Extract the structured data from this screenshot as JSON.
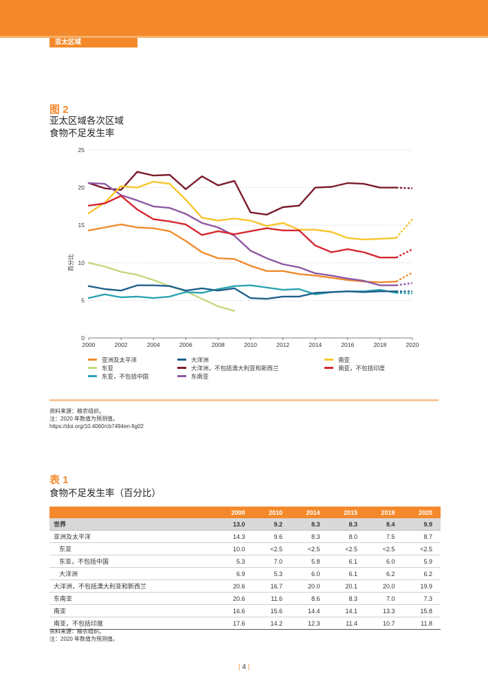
{
  "header": {
    "section": "亚太区域"
  },
  "figure": {
    "label": "图 2",
    "title_line1": "亚太区域各次区域",
    "title_line2": "食物不足发生率"
  },
  "chart_data": {
    "type": "line",
    "ylabel": "百分比",
    "xlim": [
      2000,
      2020
    ],
    "ylim": [
      0,
      25
    ],
    "xticks": [
      "2000",
      "2002",
      "2004",
      "2006",
      "2008",
      "2010",
      "2012",
      "2014",
      "2016",
      "2018",
      "2020"
    ],
    "yticks": [
      "0",
      "5",
      "10",
      "15",
      "20",
      "25"
    ],
    "grid": "horizontal dotted",
    "legend_position": "bottom",
    "projection_note": "2020 values dashed (projection)",
    "series": [
      {
        "name": "亚洲及太平洋",
        "color": "#f08a2c",
        "x": [
          2000,
          2001,
          2002,
          2003,
          2004,
          2005,
          2006,
          2007,
          2008,
          2009,
          2010,
          2011,
          2012,
          2013,
          2014,
          2015,
          2016,
          2017,
          2018,
          2019
        ],
        "y": [
          14.3,
          14.7,
          15.1,
          14.7,
          14.6,
          14.2,
          12.9,
          11.4,
          10.6,
          10.5,
          9.6,
          8.9,
          8.9,
          8.5,
          8.3,
          8.0,
          7.7,
          7.5,
          7.4,
          7.5
        ],
        "projection": [
          8.7
        ]
      },
      {
        "name": "东亚",
        "color": "#c5d87f",
        "x": [
          2000,
          2001,
          2002,
          2003,
          2004,
          2005,
          2006,
          2007,
          2008,
          2009
        ],
        "y": [
          10.0,
          9.5,
          8.8,
          8.4,
          7.7,
          6.9,
          6.2,
          5.2,
          4.2,
          3.6
        ]
      },
      {
        "name": "东亚，不包括中国",
        "color": "#2aa3b0",
        "x": [
          2000,
          2001,
          2002,
          2003,
          2004,
          2005,
          2006,
          2007,
          2008,
          2009,
          2010,
          2011,
          2012,
          2013,
          2014,
          2015,
          2016,
          2017,
          2018,
          2019
        ],
        "y": [
          5.3,
          5.8,
          5.4,
          5.5,
          5.3,
          5.5,
          6.1,
          6.0,
          6.5,
          6.9,
          7.0,
          6.7,
          6.4,
          6.5,
          5.8,
          6.1,
          6.2,
          6.2,
          6.4,
          6.0
        ],
        "projection": [
          5.9
        ]
      },
      {
        "name": "大洋洲",
        "color": "#1f5f8b",
        "x": [
          2000,
          2001,
          2002,
          2003,
          2004,
          2005,
          2006,
          2007,
          2008,
          2009,
          2010,
          2011,
          2012,
          2013,
          2014,
          2015,
          2016,
          2017,
          2018,
          2019
        ],
        "y": [
          6.9,
          6.5,
          6.3,
          7.0,
          7.0,
          6.9,
          6.3,
          6.6,
          6.3,
          6.6,
          5.3,
          5.2,
          5.5,
          5.5,
          6.0,
          6.1,
          6.2,
          6.1,
          6.2,
          6.2
        ],
        "projection": [
          6.2
        ]
      },
      {
        "name": "大洋洲，不包括澳大利亚和新西兰",
        "color": "#7b1a2c",
        "x": [
          2000,
          2001,
          2002,
          2003,
          2004,
          2005,
          2006,
          2007,
          2008,
          2009,
          2010,
          2011,
          2012,
          2013,
          2014,
          2015,
          2016,
          2017,
          2018,
          2019
        ],
        "y": [
          20.6,
          19.9,
          19.7,
          22.1,
          21.6,
          21.7,
          19.8,
          21.5,
          20.3,
          20.9,
          16.7,
          16.4,
          17.4,
          17.6,
          20.0,
          20.1,
          20.6,
          20.5,
          20.0,
          20.0
        ],
        "projection": [
          19.9
        ]
      },
      {
        "name": "东南亚",
        "color": "#8e58a3",
        "x": [
          2000,
          2001,
          2002,
          2003,
          2004,
          2005,
          2006,
          2007,
          2008,
          2009,
          2010,
          2011,
          2012,
          2013,
          2014,
          2015,
          2016,
          2017,
          2018,
          2019
        ],
        "y": [
          20.6,
          20.5,
          19.0,
          18.3,
          17.5,
          17.3,
          16.5,
          15.3,
          14.7,
          13.6,
          11.6,
          10.6,
          9.8,
          9.4,
          8.6,
          8.3,
          7.9,
          7.6,
          7.0,
          7.0
        ],
        "projection": [
          7.3
        ]
      },
      {
        "name": "南亚",
        "color": "#f7c52a",
        "x": [
          2000,
          2001,
          2002,
          2003,
          2004,
          2005,
          2006,
          2007,
          2008,
          2009,
          2010,
          2011,
          2012,
          2013,
          2014,
          2015,
          2016,
          2017,
          2018,
          2019
        ],
        "y": [
          16.6,
          18.0,
          20.2,
          20.0,
          20.8,
          20.5,
          18.4,
          16.0,
          15.6,
          15.9,
          15.6,
          14.9,
          15.3,
          14.4,
          14.4,
          14.1,
          13.3,
          13.1,
          13.2,
          13.3
        ],
        "projection": [
          15.8
        ]
      },
      {
        "name": "南亚，不包括印度",
        "color": "#d6262e",
        "x": [
          2000,
          2001,
          2002,
          2003,
          2004,
          2005,
          2006,
          2007,
          2008,
          2009,
          2010,
          2011,
          2012,
          2013,
          2014,
          2015,
          2016,
          2017,
          2018,
          2019
        ],
        "y": [
          17.6,
          17.9,
          18.9,
          17.1,
          15.8,
          15.5,
          15.1,
          13.7,
          14.2,
          13.8,
          14.2,
          14.6,
          14.3,
          14.3,
          12.3,
          11.4,
          11.8,
          11.4,
          10.7,
          10.7
        ],
        "projection": [
          11.8
        ]
      }
    ]
  },
  "figure_notes": {
    "source": "资料来源：粮农组织。",
    "note": "注：2020 年数值为预测值。",
    "doi": "https://doi.org/10.4060/cb7494en-fig02"
  },
  "table": {
    "label": "表 1",
    "title": "食物不足发生率（百分比）",
    "columns": [
      "2000",
      "2010",
      "2014",
      "2015",
      "2019",
      "2020"
    ],
    "rows": [
      {
        "name": "世界",
        "values": [
          "13.0",
          "9.2",
          "8.3",
          "8.3",
          "8.4",
          "9.9"
        ]
      },
      {
        "name": "亚洲及太平洋",
        "values": [
          "14.3",
          "9.6",
          "8.3",
          "8.0",
          "7.5",
          "8.7"
        ]
      },
      {
        "name": "东亚",
        "values": [
          "10.0",
          "<2.5",
          "<2.5",
          "<2.5",
          "<2.5",
          "<2.5"
        ]
      },
      {
        "name": "东亚，不包括中国",
        "values": [
          "5.3",
          "7.0",
          "5.8",
          "6.1",
          "6.0",
          "5.9"
        ]
      },
      {
        "name": "大洋洲",
        "values": [
          "6.9",
          "5.3",
          "6.0",
          "6.1",
          "6.2",
          "6.2"
        ]
      },
      {
        "name": "大洋洲，不包括澳大利亚和新西兰",
        "values": [
          "20.6",
          "16.7",
          "20.0",
          "20.1",
          "20.0",
          "19.9"
        ]
      },
      {
        "name": "东南亚",
        "values": [
          "20.6",
          "11.6",
          "8.6",
          "8.3",
          "7.0",
          "7.3"
        ]
      },
      {
        "name": "南亚",
        "values": [
          "16.6",
          "15.6",
          "14.4",
          "14.1",
          "13.3",
          "15.8"
        ]
      },
      {
        "name": "南亚，不包括印度",
        "values": [
          "17.6",
          "14.2",
          "12.3",
          "11.4",
          "10.7",
          "11.8"
        ]
      }
    ],
    "source": "资料来源：粮农组织。",
    "note": "注：2020 年数值为预测值。"
  },
  "page_number": "4"
}
